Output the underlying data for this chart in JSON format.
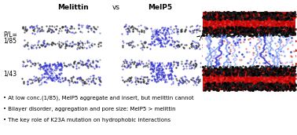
{
  "title_melittin": "Melittin",
  "title_vs": "vs",
  "title_melp5": "MelP5",
  "label_pl85": "P/L=\n1/85",
  "label_143": "1/43",
  "bullet_points": [
    "• At low conc.(1/85), MelP5 aggregate and insert, but melittin cannot",
    "• Bilayer disorder, aggregation and pore size: MelP5 > melittin",
    "• The key role of K23A mutation on hydrophobic interactions"
  ],
  "bg_color": "#ffffff",
  "blue_peptide": "#3333cc",
  "blue_light": "#7799ee",
  "dark_head": "#333333",
  "red_lipid": "#cc1111",
  "black_head": "#111111"
}
